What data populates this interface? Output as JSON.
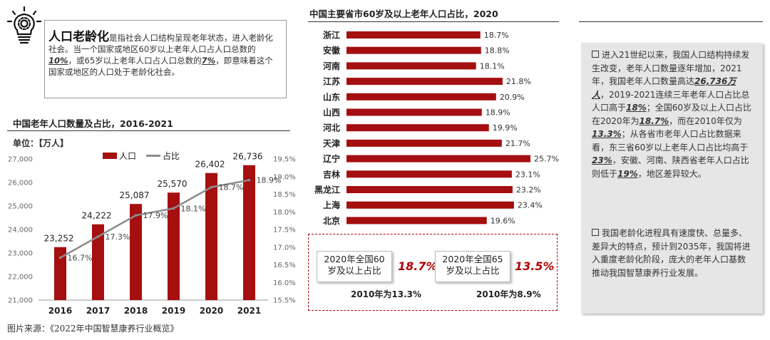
{
  "definition": {
    "term": "人口老龄化",
    "text_a": "是指社会人口结构呈现老年状态，进入老龄化社会。当一个国家或地区60岁以上老年人口占人口总数的",
    "pct_60": "10%",
    "text_b": "，或65岁以上老年人口占人口总数的",
    "pct_65": "7%",
    "text_c": "，即意味着这个国家或地区的人口处于老龄化社会。"
  },
  "left_chart": {
    "title": "中国老年人口数量及占比，2016-2021",
    "unit_label": "单位：【万人】",
    "legend_bar": "人口",
    "legend_line": "占比"
  },
  "right_chart": {
    "title": "中国主要省市60岁及以上老年人口占比，2020"
  },
  "stats": [
    {
      "label_1": "2020年全国60",
      "label_2": "岁及以上占比",
      "value": "18.7%",
      "sub": "2010年为13.3%"
    },
    {
      "label_1": "2020年全国65",
      "label_2": "岁及以上占比",
      "value": "13.5%",
      "sub": "2010年为8.9%"
    }
  ],
  "panel": {
    "p1_a": "进入21世纪以来，我国人口结构持续发生改变，老年人口数量逐年增加，2021年，我国老年人口数量高达",
    "p1_b": "26,736万人",
    "p1_c": "，2019-2021连续三年老年人口占比总人口高于",
    "p1_d": "18%",
    "p1_e": "；全国60岁及以上人口占比在2020年为",
    "p1_f": "18.7%",
    "p1_g": "，而在2010年仅为",
    "p1_h": "13.3%",
    "p1_i": "；从各省市老年人口占比数据来看，东三省60岁以上老年人口占比均高于",
    "p1_j": "23%",
    "p1_k": "，安徽、河南、陕西省老年人口占比则低于",
    "p1_l": "19%",
    "p1_m": "，地区差异较大。",
    "p2": "我国老龄化进程具有速度快、总量多、差异大的特点，预计到2035年，我国将进入重度老龄化阶段，庞大的老年人口基数推动我国智慧康养行业发展。"
  },
  "source": "图片来源：《2022年中国智慧康养行业概览》",
  "colors": {
    "bar": "#a50f10",
    "line": "#8c8c8c",
    "province_bar": "#a50f10",
    "accent": "#b00000"
  },
  "icon": "lightbulb-gear-icon",
  "chart_data": [
    {
      "type": "bar",
      "title": "中国老年人口数量及占比，2016-2021",
      "categories": [
        "2016",
        "2017",
        "2018",
        "2019",
        "2020",
        "2021"
      ],
      "series": [
        {
          "name": "人口",
          "type": "bar",
          "axis": "left",
          "values": [
            23252,
            24222,
            25087,
            25570,
            26402,
            26736
          ],
          "labels": [
            "23,252",
            "24,222",
            "25,087",
            "25,570",
            "26,402",
            "26,736"
          ]
        },
        {
          "name": "占比",
          "type": "line",
          "axis": "right",
          "values": [
            16.7,
            17.3,
            17.9,
            18.1,
            18.7,
            18.9
          ],
          "labels": [
            "16.7%",
            "17.3%",
            "17.9%",
            "18.1%",
            "18.7%",
            "18.9%"
          ]
        }
      ],
      "ylim": [
        21000,
        27000
      ],
      "yticks": [
        21000,
        22000,
        23000,
        24000,
        25000,
        26000,
        27000
      ],
      "ytick_labels": [
        "21,000",
        "22,000",
        "23,000",
        "24,000",
        "25,000",
        "26,000",
        "27,000"
      ],
      "y2lim": [
        15.5,
        19.5
      ],
      "y2ticks": [
        15.5,
        16,
        16.5,
        17,
        17.5,
        18,
        18.5,
        19,
        19.5
      ],
      "y2tick_labels": [
        "15.5%",
        "16.0%",
        "16.5%",
        "17.0%",
        "17.5%",
        "18.0%",
        "18.5%",
        "19.0%",
        "19.5%"
      ],
      "legend": "top"
    },
    {
      "type": "bar",
      "orientation": "horizontal",
      "title": "中国主要省市60岁及以上老年人口占比，2020",
      "categories": [
        "浙江",
        "安徽",
        "河南",
        "江苏",
        "山东",
        "山西",
        "河北",
        "天津",
        "辽宁",
        "吉林",
        "黑龙江",
        "上海",
        "北京"
      ],
      "values": [
        18.7,
        18.8,
        18.1,
        21.8,
        20.9,
        18.9,
        19.9,
        21.7,
        25.7,
        23.1,
        23.2,
        23.4,
        19.6
      ],
      "labels": [
        "18.7%",
        "18.8%",
        "18.1%",
        "21.8%",
        "20.9%",
        "18.9%",
        "19.9%",
        "21.7%",
        "25.7%",
        "23.1%",
        "23.2%",
        "23.4%",
        "19.6%"
      ],
      "xlim": [
        0,
        25.7
      ]
    }
  ]
}
